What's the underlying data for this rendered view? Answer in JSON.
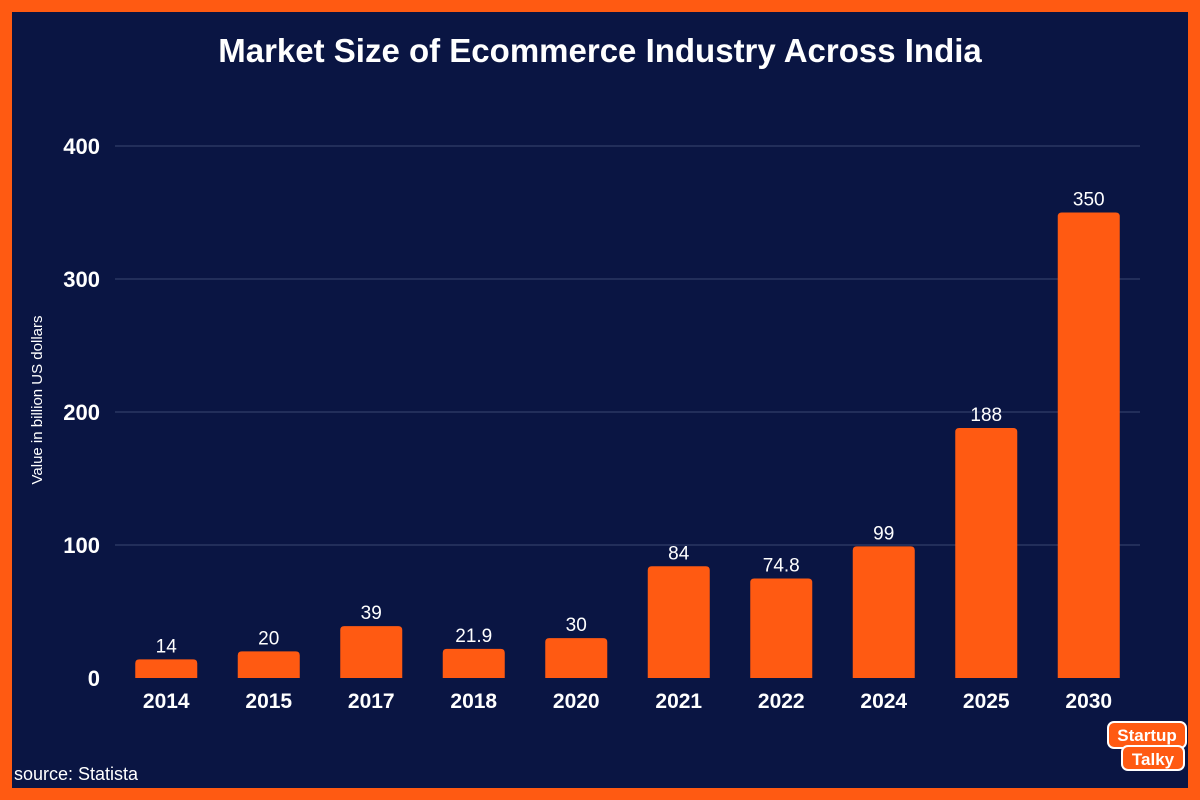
{
  "colors": {
    "border": "#ff5a12",
    "background": "#0a1543",
    "bar": "#ff5a12",
    "text": "#ffffff",
    "grid": "#3a4670"
  },
  "chart_data": {
    "type": "bar",
    "title": "Market Size of Ecommerce Industry Across India",
    "xlabel": "",
    "ylabel": "Value in billion US dollars",
    "categories": [
      "2014",
      "2015",
      "2017",
      "2018",
      "2020",
      "2021",
      "2022",
      "2024",
      "2025",
      "2030"
    ],
    "values": [
      14,
      20,
      39,
      21.9,
      30,
      84,
      74.8,
      99,
      188,
      350
    ],
    "data_labels": [
      "14",
      "20",
      "39",
      "21.9",
      "30",
      "84",
      "74.8",
      "99",
      "188",
      "350"
    ],
    "ylim": [
      0,
      400
    ],
    "yticks": [
      0,
      100,
      200,
      300,
      400
    ],
    "grid": true
  },
  "footer": {
    "source": "source: Statista"
  },
  "logo": {
    "line1": "Startup",
    "line2": "Talky"
  }
}
